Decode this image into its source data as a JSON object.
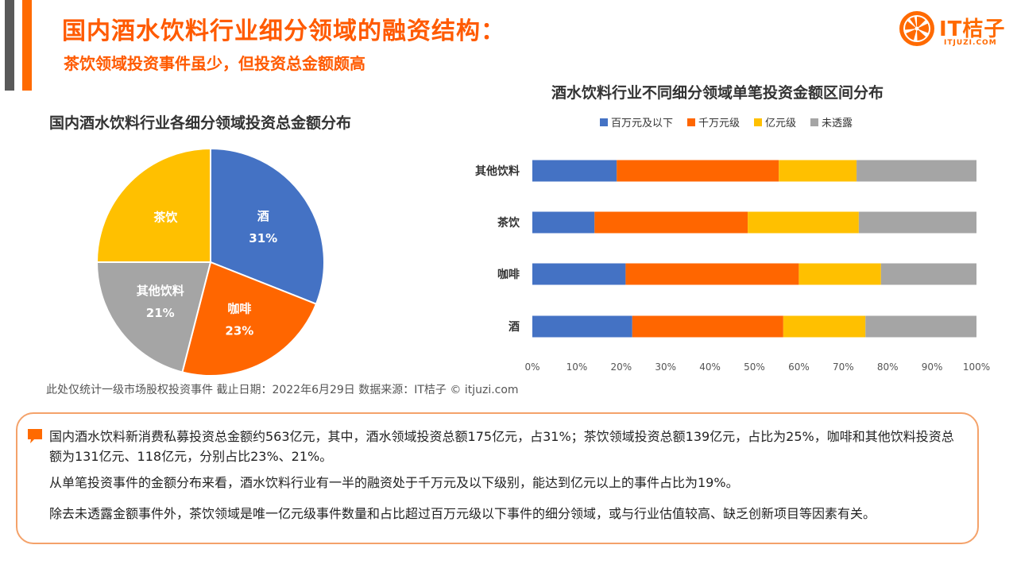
{
  "header": {
    "title": "国内酒水饮料行业细分领域的融资结构：",
    "subtitle": "茶饮领域投资事件虽少，但投资总金额颇高"
  },
  "logo": {
    "name": "IT桔子",
    "url": "ITJUZI.COM"
  },
  "colors": {
    "blue": "#4472c4",
    "orange": "#ff6600",
    "yellow": "#ffc000",
    "gray": "#a5a5a5",
    "accent": "#ff5a00"
  },
  "chart_data": [
    {
      "type": "pie",
      "title": "国内酒水饮料行业各细分领域投资总金额分布",
      "slices": [
        {
          "label": "酒",
          "value": 31,
          "display": "31%",
          "color": "#4472c4"
        },
        {
          "label": "咖啡",
          "value": 23,
          "display": "23%",
          "color": "#ff6600"
        },
        {
          "label": "其他饮料",
          "value": 21,
          "display": "21%",
          "color": "#a5a5a5"
        },
        {
          "label": "茶饮",
          "value": 25,
          "display": "",
          "color": "#ffc000"
        }
      ]
    },
    {
      "type": "bar",
      "orientation": "horizontal",
      "stacked": "percent",
      "title": "酒水饮料行业不同细分领域单笔投资金额区间分布",
      "categories": [
        "其他饮料",
        "茶饮",
        "咖啡",
        "酒"
      ],
      "series": [
        {
          "name": "百万元及以下",
          "color": "#4472c4",
          "values": [
            19,
            14,
            21,
            22.5
          ]
        },
        {
          "name": "千万元级",
          "color": "#ff6600",
          "values": [
            36.5,
            34.5,
            39,
            34
          ]
        },
        {
          "name": "亿元级",
          "color": "#ffc000",
          "values": [
            17.5,
            25,
            18.5,
            18.5
          ]
        },
        {
          "name": "未透露",
          "color": "#a5a5a5",
          "values": [
            27,
            26.5,
            21.5,
            25
          ]
        }
      ],
      "xlim": [
        0,
        100
      ],
      "xticks": [
        "0%",
        "10%",
        "20%",
        "30%",
        "40%",
        "50%",
        "60%",
        "70%",
        "80%",
        "90%",
        "100%"
      ],
      "legend_position": "top"
    }
  ],
  "footnote": "此处仅统计一级市场股权投资事件    截止日期：2022年6月29日    数据来源：IT桔子 © itjuzi.com",
  "summary": {
    "p1": "国内酒水饮料新消费私募投资总金额约563亿元，其中，酒水领域投资总额175亿元，占31%；茶饮领域投资总额139亿元，占比为25%，咖啡和其他饮料投资总额为131亿元、118亿元，分别占比23%、21%。",
    "p2": "从单笔投资事件的金额分布来看，酒水饮料行业有一半的融资处于千万元及以下级别，能达到亿元以上的事件占比为19%。",
    "p3": "除去未透露金额事件外，茶饮领域是唯一亿元级事件数量和占比超过百万元级以下事件的细分领域，或与行业估值较高、缺乏创新项目等因素有关。"
  }
}
